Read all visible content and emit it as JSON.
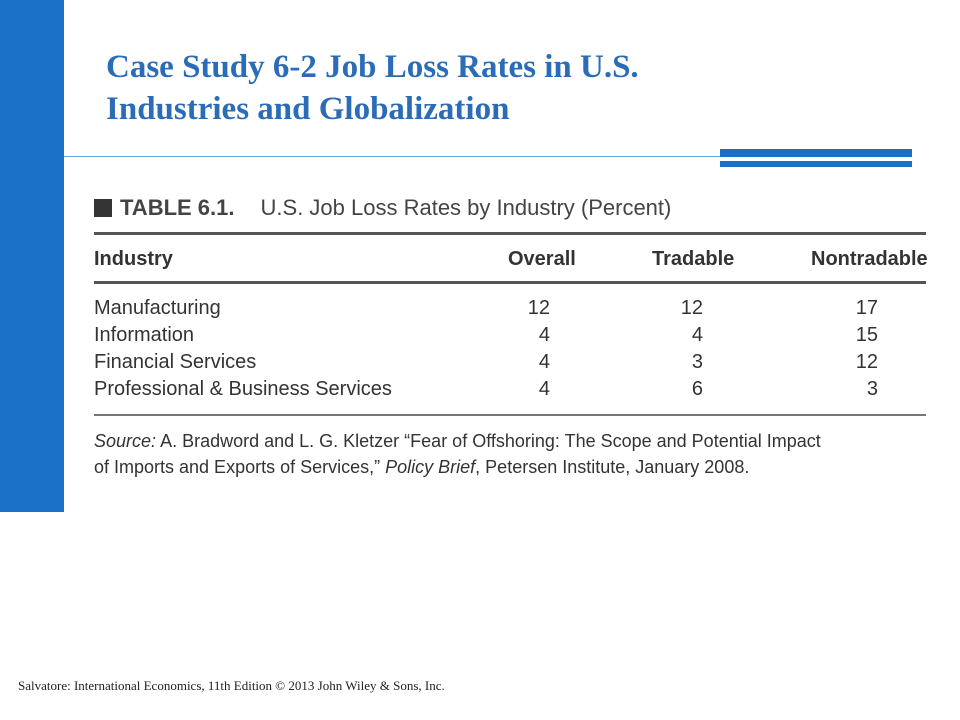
{
  "slide": {
    "title_line1": "Case Study 6-2  Job Loss Rates in U.S.",
    "title_line2": "Industries and Globalization"
  },
  "table": {
    "number": "TABLE 6.1.",
    "caption": "U.S. Job Loss Rates by Industry (Percent)",
    "columns": [
      "Industry",
      "Overall",
      "Tradable",
      "Nontradable"
    ],
    "rows": [
      {
        "industry": "Manufacturing",
        "overall": "12",
        "tradable": "12",
        "nontradable": "17"
      },
      {
        "industry": "Information",
        "overall": "4",
        "tradable": "4",
        "nontradable": "15"
      },
      {
        "industry": "Financial Services",
        "overall": "4",
        "tradable": "3",
        "nontradable": "12"
      },
      {
        "industry": "Professional & Business Services",
        "overall": "4",
        "tradable": "6",
        "nontradable": "3"
      }
    ],
    "source_label": "Source:",
    "source_line1": "A. Bradword and L. G. Kletzer “Fear of Offshoring: The Scope and Potential Impact",
    "source_line2_a": "of Imports and Exports of Services,”",
    "source_line2_b": "Policy Brief",
    "source_line2_c": ", Petersen Institute, January 2008."
  },
  "footer": {
    "text": "Salvatore: International Economics, 11th Edition  © 2013 John Wiley & Sons, Inc."
  },
  "colors": {
    "accent": "#1a6fc7",
    "title": "#2b6cb8"
  }
}
